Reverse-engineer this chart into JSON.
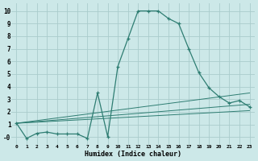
{
  "xlabel": "Humidex (Indice chaleur)",
  "bg_color": "#cce8e8",
  "grid_color": "#aacccc",
  "line_color": "#2e7d72",
  "series": [
    {
      "x": [
        0,
        1,
        2,
        3,
        4,
        5,
        6,
        7,
        8,
        9,
        10,
        11,
        12,
        13,
        14,
        15,
        16,
        17,
        18,
        19,
        20,
        21,
        22,
        23
      ],
      "y": [
        1.1,
        -0.1,
        0.3,
        0.4,
        0.25,
        0.25,
        0.25,
        -0.1,
        3.5,
        0.05,
        5.6,
        7.8,
        10.0,
        10.0,
        10.0,
        9.4,
        9.0,
        7.0,
        5.1,
        3.9,
        3.2,
        2.7,
        2.9,
        2.4
      ]
    },
    {
      "x": [
        0,
        23
      ],
      "y": [
        1.1,
        3.5
      ]
    },
    {
      "x": [
        0,
        23
      ],
      "y": [
        1.1,
        2.6
      ]
    },
    {
      "x": [
        0,
        23
      ],
      "y": [
        1.1,
        2.1
      ]
    }
  ],
  "xlim": [
    -0.5,
    23.5
  ],
  "ylim": [
    -0.6,
    10.6
  ],
  "ytick_vals": [
    0,
    1,
    2,
    3,
    4,
    5,
    6,
    7,
    8,
    9,
    10
  ],
  "ytick_labels": [
    "-0",
    "1",
    "2",
    "3",
    "4",
    "5",
    "6",
    "7",
    "8",
    "9",
    "10"
  ],
  "xticks": [
    0,
    1,
    2,
    3,
    4,
    5,
    6,
    7,
    8,
    9,
    10,
    11,
    12,
    13,
    14,
    15,
    16,
    17,
    18,
    19,
    20,
    21,
    22,
    23
  ]
}
